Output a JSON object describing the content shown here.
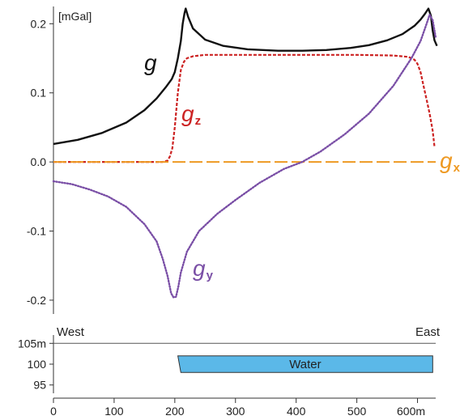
{
  "chart_data": [
    {
      "type": "line",
      "unit_label": "[mGal]",
      "ylim": [
        -0.22,
        0.225
      ],
      "xlim": [
        0,
        630
      ],
      "yticks": [
        {
          "value": 0.2,
          "label": "0.2"
        },
        {
          "value": 0.1,
          "label": "0.1"
        },
        {
          "value": 0.0,
          "label": "0.0"
        },
        {
          "value": -0.1,
          "label": "-0.1"
        },
        {
          "value": -0.2,
          "label": "-0.2"
        }
      ],
      "series": [
        {
          "name": "g",
          "subscript": "",
          "color": "#111111",
          "style": "solid",
          "x": [
            0,
            40,
            80,
            120,
            150,
            170,
            185,
            195,
            200,
            205,
            210,
            213,
            216,
            218,
            222,
            230,
            250,
            280,
            320,
            370,
            410,
            450,
            490,
            520,
            550,
            575,
            595,
            605,
            612,
            618,
            622,
            625,
            628,
            632
          ],
          "y": [
            0.026,
            0.032,
            0.042,
            0.057,
            0.075,
            0.092,
            0.108,
            0.12,
            0.13,
            0.15,
            0.175,
            0.2,
            0.215,
            0.222,
            0.21,
            0.193,
            0.177,
            0.168,
            0.163,
            0.161,
            0.161,
            0.162,
            0.165,
            0.169,
            0.176,
            0.185,
            0.197,
            0.206,
            0.214,
            0.222,
            0.212,
            0.19,
            0.176,
            0.168
          ]
        },
        {
          "name": "g",
          "subscript": "z",
          "color": "#cc2222",
          "style": "dashed",
          "x": [
            0,
            150,
            180,
            188,
            192,
            196,
            200,
            205,
            210,
            215,
            220,
            230,
            250,
            300,
            400,
            500,
            560,
            585,
            595,
            600,
            605,
            610,
            615,
            620,
            625,
            628
          ],
          "y": [
            0.0,
            0.0,
            0.0,
            0.002,
            0.008,
            0.02,
            0.05,
            0.1,
            0.133,
            0.145,
            0.15,
            0.153,
            0.155,
            0.155,
            0.155,
            0.155,
            0.154,
            0.152,
            0.148,
            0.142,
            0.13,
            0.11,
            0.09,
            0.07,
            0.045,
            0.022
          ]
        },
        {
          "name": "g",
          "subscript": "x",
          "color": "#ee9922",
          "style": "longdash",
          "x": [
            0,
            630
          ],
          "y": [
            0.0,
            0.0
          ]
        },
        {
          "name": "g",
          "subscript": "y",
          "color": "#7a4fa6",
          "style": "dotted",
          "x": [
            0,
            30,
            60,
            90,
            120,
            150,
            170,
            180,
            188,
            194,
            198,
            202,
            206,
            210,
            220,
            240,
            270,
            300,
            340,
            380,
            410,
            440,
            480,
            520,
            560,
            590,
            605,
            615,
            620,
            625,
            630
          ],
          "y": [
            -0.028,
            -0.032,
            -0.04,
            -0.05,
            -0.065,
            -0.09,
            -0.115,
            -0.14,
            -0.165,
            -0.19,
            -0.196,
            -0.195,
            -0.18,
            -0.16,
            -0.13,
            -0.1,
            -0.075,
            -0.055,
            -0.03,
            -0.01,
            0.0,
            0.015,
            0.04,
            0.07,
            0.11,
            0.15,
            0.175,
            0.2,
            0.213,
            0.205,
            0.18
          ]
        }
      ]
    },
    {
      "type": "area",
      "xlabel_unit": "m",
      "xlim": [
        0,
        630
      ],
      "ylim": [
        93,
        107
      ],
      "xticks": [
        {
          "value": 0,
          "label": "0"
        },
        {
          "value": 100,
          "label": "100"
        },
        {
          "value": 200,
          "label": "200"
        },
        {
          "value": 300,
          "label": "300"
        },
        {
          "value": 400,
          "label": "400"
        },
        {
          "value": 500,
          "label": "500"
        },
        {
          "value": 600,
          "label": "600m"
        }
      ],
      "yticks": [
        {
          "value": 105,
          "label": "105m"
        },
        {
          "value": 100,
          "label": "100"
        },
        {
          "value": 95,
          "label": "95"
        }
      ],
      "surface_level": 105,
      "west_label": "West",
      "east_label": "East",
      "water": {
        "label": "Water",
        "color": "#5bb8e8",
        "polygon": [
          [
            205,
            102
          ],
          [
            625,
            102
          ],
          [
            625,
            98
          ],
          [
            210,
            98
          ]
        ]
      }
    }
  ]
}
